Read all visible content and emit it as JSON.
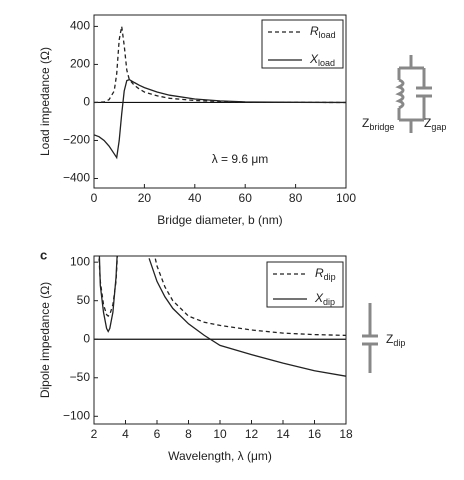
{
  "chart_data": [
    {
      "type": "line",
      "xlabel": "Bridge diameter, b (nm)",
      "ylabel": "Load impedance (Ω)",
      "annotation": "λ = 9.6 μm",
      "x": [
        0,
        2,
        4,
        6,
        8,
        9,
        10,
        11,
        12,
        13,
        14,
        16,
        18,
        20,
        25,
        30,
        40,
        50,
        60,
        80,
        100
      ],
      "series": [
        {
          "name": "R",
          "subscript": "load",
          "color": "#222222",
          "style": "dashed",
          "values": [
            0,
            1,
            3,
            15,
            60,
            150,
            330,
            400,
            300,
            170,
            120,
            90,
            70,
            55,
            35,
            22,
            10,
            5,
            2,
            1,
            0
          ]
        },
        {
          "name": "X",
          "subscript": "load",
          "color": "#222222",
          "style": "solid",
          "values": [
            -170,
            -180,
            -200,
            -230,
            -270,
            -290,
            -200,
            -60,
            60,
            115,
            120,
            105,
            90,
            78,
            55,
            38,
            18,
            8,
            3,
            1,
            0
          ]
        }
      ],
      "xlim": [
        0,
        100
      ],
      "xticks": [
        0,
        20,
        40,
        60,
        80,
        100
      ],
      "ylim": [
        -450,
        460
      ],
      "yticks": [
        {
          "value": -400,
          "label": "−400"
        },
        {
          "value": -200,
          "label": "−200"
        },
        0,
        200,
        400
      ],
      "legend": "upper right"
    },
    {
      "type": "line",
      "xlabel": "Wavelength, λ (μm)",
      "ylabel": "Dipole impedance (Ω)",
      "x": [
        2.2,
        2.4,
        2.6,
        2.8,
        2.9,
        3.0,
        3.2,
        3.4,
        3.6,
        4.5,
        5.5,
        6,
        6.5,
        7,
        8,
        9,
        10,
        12,
        14,
        16,
        18
      ],
      "series": [
        {
          "name": "R",
          "subscript": "dip",
          "color": "#222222",
          "style": "dashed",
          "values": [
            150,
            75,
            45,
            32,
            30,
            32,
            45,
            75,
            150,
            null,
            140,
            95,
            68,
            50,
            30,
            22,
            18,
            12,
            8,
            6,
            5
          ]
        },
        {
          "name": "X",
          "subscript": "dip",
          "color": "#222222",
          "style": "solid",
          "values": [
            200,
            70,
            35,
            14,
            10,
            14,
            35,
            80,
            160,
            null,
            105,
            75,
            55,
            40,
            20,
            5,
            -8,
            -20,
            -31,
            -41,
            -48
          ]
        }
      ],
      "xlim": [
        2,
        18
      ],
      "xticks": [
        2,
        4,
        6,
        8,
        10,
        12,
        14,
        16,
        18
      ],
      "ylim": [
        -110,
        108
      ],
      "yticks": [
        {
          "value": -100,
          "label": "−100"
        },
        {
          "value": -50,
          "label": "−50"
        },
        0,
        50,
        100
      ],
      "legend": "upper right"
    }
  ],
  "panel_label": "c",
  "diagram": {
    "labels": [
      {
        "main": "Z",
        "sub": "bridge"
      },
      {
        "main": "Z",
        "sub": "gap"
      },
      {
        "main": "Z",
        "sub": "dip"
      }
    ]
  }
}
